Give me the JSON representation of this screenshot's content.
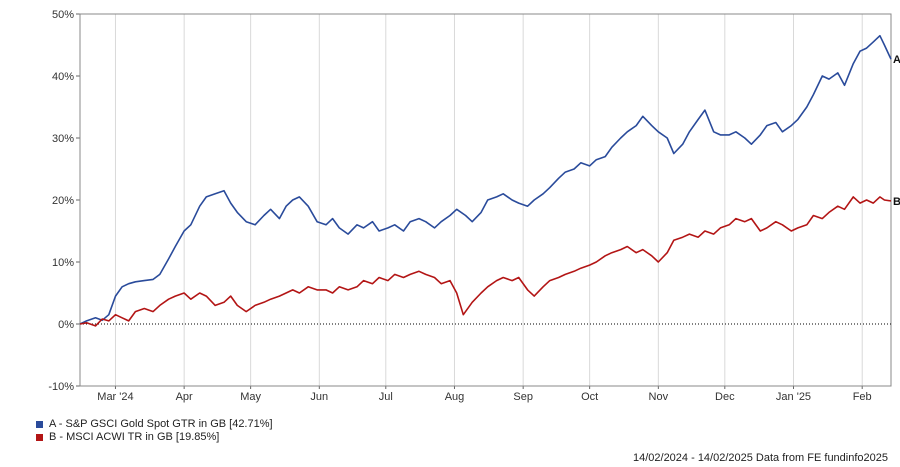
{
  "chart_data": {
    "type": "line",
    "title": "",
    "xlabel": "",
    "ylabel": "",
    "ylim": [
      -10,
      50
    ],
    "y_ticks": [
      50,
      40,
      30,
      20,
      10,
      0,
      -10
    ],
    "y_tick_labels": [
      "50%",
      "40%",
      "30%",
      "20%",
      "10%",
      "0%",
      "-10%"
    ],
    "x_tick_labels": [
      "Mar '24",
      "Apr",
      "May",
      "Jun",
      "Jul",
      "Aug",
      "Sep",
      "Oct",
      "Nov",
      "Dec",
      "Jan '25",
      "Feb"
    ],
    "x_tick_dates": [
      "2024-03-01",
      "2024-04-01",
      "2024-05-01",
      "2024-06-01",
      "2024-07-01",
      "2024-08-01",
      "2024-09-01",
      "2024-10-01",
      "2024-11-01",
      "2024-12-01",
      "2025-01-01",
      "2025-02-01"
    ],
    "xlim": [
      "2024-02-14",
      "2025-02-14"
    ],
    "grid": "vertical gridlines at month ticks; dotted zero line",
    "series": [
      {
        "name": "A - S&P GSCI Gold Spot GTR in GB [42.71%]",
        "end_label": "A",
        "color": "#2a4b9b",
        "x": [
          "2024-02-14",
          "2024-02-17",
          "2024-02-21",
          "2024-02-24",
          "2024-02-27",
          "2024-03-01",
          "2024-03-04",
          "2024-03-07",
          "2024-03-10",
          "2024-03-14",
          "2024-03-18",
          "2024-03-21",
          "2024-03-25",
          "2024-03-28",
          "2024-04-01",
          "2024-04-04",
          "2024-04-08",
          "2024-04-11",
          "2024-04-15",
          "2024-04-19",
          "2024-04-22",
          "2024-04-25",
          "2024-04-29",
          "2024-05-03",
          "2024-05-07",
          "2024-05-10",
          "2024-05-14",
          "2024-05-17",
          "2024-05-20",
          "2024-05-23",
          "2024-05-27",
          "2024-05-31",
          "2024-06-04",
          "2024-06-07",
          "2024-06-10",
          "2024-06-14",
          "2024-06-18",
          "2024-06-21",
          "2024-06-25",
          "2024-06-28",
          "2024-07-02",
          "2024-07-05",
          "2024-07-09",
          "2024-07-12",
          "2024-07-16",
          "2024-07-19",
          "2024-07-23",
          "2024-07-26",
          "2024-07-30",
          "2024-08-02",
          "2024-08-06",
          "2024-08-09",
          "2024-08-13",
          "2024-08-16",
          "2024-08-20",
          "2024-08-23",
          "2024-08-27",
          "2024-08-30",
          "2024-09-03",
          "2024-09-06",
          "2024-09-10",
          "2024-09-13",
          "2024-09-17",
          "2024-09-20",
          "2024-09-24",
          "2024-09-27",
          "2024-10-01",
          "2024-10-04",
          "2024-10-08",
          "2024-10-11",
          "2024-10-15",
          "2024-10-18",
          "2024-10-22",
          "2024-10-25",
          "2024-10-29",
          "2024-11-01",
          "2024-11-05",
          "2024-11-08",
          "2024-11-12",
          "2024-11-15",
          "2024-11-19",
          "2024-11-22",
          "2024-11-26",
          "2024-11-29",
          "2024-12-03",
          "2024-12-06",
          "2024-12-10",
          "2024-12-13",
          "2024-12-17",
          "2024-12-20",
          "2024-12-24",
          "2024-12-27",
          "2024-12-31",
          "2025-01-03",
          "2025-01-07",
          "2025-01-10",
          "2025-01-14",
          "2025-01-17",
          "2025-01-21",
          "2025-01-24",
          "2025-01-28",
          "2025-01-31",
          "2025-02-03",
          "2025-02-06",
          "2025-02-09",
          "2025-02-11",
          "2025-02-14"
        ],
        "values": [
          0.0,
          0.5,
          1.0,
          0.6,
          1.5,
          4.5,
          6.0,
          6.5,
          6.8,
          7.0,
          7.2,
          8.0,
          10.5,
          12.5,
          15.0,
          16.0,
          19.0,
          20.5,
          21.0,
          21.5,
          19.5,
          18.0,
          16.5,
          16.0,
          17.5,
          18.5,
          17.0,
          19.0,
          20.0,
          20.5,
          19.0,
          16.5,
          16.0,
          17.0,
          15.5,
          14.5,
          16.0,
          15.5,
          16.5,
          15.0,
          15.5,
          16.0,
          15.0,
          16.5,
          17.0,
          16.5,
          15.5,
          16.5,
          17.5,
          18.5,
          17.5,
          16.5,
          18.0,
          20.0,
          20.5,
          21.0,
          20.0,
          19.5,
          19.0,
          20.0,
          21.0,
          22.0,
          23.5,
          24.5,
          25.0,
          26.0,
          25.5,
          26.5,
          27.0,
          28.5,
          30.0,
          31.0,
          32.0,
          33.5,
          32.0,
          31.0,
          30.0,
          27.5,
          29.0,
          31.0,
          33.0,
          34.5,
          31.0,
          30.5,
          30.5,
          31.0,
          30.0,
          29.0,
          30.5,
          32.0,
          32.5,
          31.0,
          32.0,
          33.0,
          35.0,
          37.0,
          40.0,
          39.5,
          40.5,
          38.5,
          42.0,
          44.0,
          44.5,
          45.5,
          46.5,
          45.0,
          42.71
        ]
      },
      {
        "name": "B - MSCI ACWI TR in GB [19.85%]",
        "end_label": "B",
        "color": "#b31515",
        "x": [
          "2024-02-14",
          "2024-02-17",
          "2024-02-21",
          "2024-02-24",
          "2024-02-27",
          "2024-03-01",
          "2024-03-04",
          "2024-03-07",
          "2024-03-10",
          "2024-03-14",
          "2024-03-18",
          "2024-03-21",
          "2024-03-25",
          "2024-03-28",
          "2024-04-01",
          "2024-04-04",
          "2024-04-08",
          "2024-04-11",
          "2024-04-15",
          "2024-04-19",
          "2024-04-22",
          "2024-04-25",
          "2024-04-29",
          "2024-05-03",
          "2024-05-07",
          "2024-05-10",
          "2024-05-14",
          "2024-05-17",
          "2024-05-20",
          "2024-05-23",
          "2024-05-27",
          "2024-05-31",
          "2024-06-04",
          "2024-06-07",
          "2024-06-10",
          "2024-06-14",
          "2024-06-18",
          "2024-06-21",
          "2024-06-25",
          "2024-06-28",
          "2024-07-02",
          "2024-07-05",
          "2024-07-09",
          "2024-07-12",
          "2024-07-16",
          "2024-07-19",
          "2024-07-23",
          "2024-07-26",
          "2024-07-30",
          "2024-08-02",
          "2024-08-05",
          "2024-08-09",
          "2024-08-13",
          "2024-08-16",
          "2024-08-20",
          "2024-08-23",
          "2024-08-27",
          "2024-08-30",
          "2024-09-03",
          "2024-09-06",
          "2024-09-10",
          "2024-09-13",
          "2024-09-17",
          "2024-09-20",
          "2024-09-24",
          "2024-09-27",
          "2024-10-01",
          "2024-10-04",
          "2024-10-08",
          "2024-10-11",
          "2024-10-15",
          "2024-10-18",
          "2024-10-22",
          "2024-10-25",
          "2024-10-29",
          "2024-11-01",
          "2024-11-05",
          "2024-11-08",
          "2024-11-12",
          "2024-11-15",
          "2024-11-19",
          "2024-11-22",
          "2024-11-26",
          "2024-11-29",
          "2024-12-03",
          "2024-12-06",
          "2024-12-10",
          "2024-12-13",
          "2024-12-17",
          "2024-12-20",
          "2024-12-24",
          "2024-12-27",
          "2024-12-31",
          "2025-01-03",
          "2025-01-07",
          "2025-01-10",
          "2025-01-14",
          "2025-01-17",
          "2025-01-21",
          "2025-01-24",
          "2025-01-28",
          "2025-01-31",
          "2025-02-03",
          "2025-02-06",
          "2025-02-09",
          "2025-02-11",
          "2025-02-14"
        ],
        "values": [
          0.0,
          0.2,
          -0.3,
          0.8,
          0.5,
          1.5,
          1.0,
          0.5,
          2.0,
          2.5,
          2.0,
          3.0,
          4.0,
          4.5,
          5.0,
          4.0,
          5.0,
          4.5,
          3.0,
          3.5,
          4.5,
          3.0,
          2.0,
          3.0,
          3.5,
          4.0,
          4.5,
          5.0,
          5.5,
          5.0,
          6.0,
          5.5,
          5.5,
          5.0,
          6.0,
          5.5,
          6.0,
          7.0,
          6.5,
          7.5,
          7.0,
          8.0,
          7.5,
          8.0,
          8.5,
          8.0,
          7.5,
          6.5,
          7.0,
          5.0,
          1.5,
          3.5,
          5.0,
          6.0,
          7.0,
          7.5,
          7.0,
          7.5,
          5.5,
          4.5,
          6.0,
          7.0,
          7.5,
          8.0,
          8.5,
          9.0,
          9.5,
          10.0,
          11.0,
          11.5,
          12.0,
          12.5,
          11.5,
          12.0,
          11.0,
          10.0,
          11.5,
          13.5,
          14.0,
          14.5,
          14.0,
          15.0,
          14.5,
          15.5,
          16.0,
          17.0,
          16.5,
          17.0,
          15.0,
          15.5,
          16.5,
          16.0,
          15.0,
          15.5,
          16.0,
          17.5,
          17.0,
          18.0,
          19.0,
          18.5,
          20.5,
          19.5,
          20.0,
          19.5,
          20.5,
          20.0,
          19.85
        ]
      }
    ],
    "legend": "bottom-left"
  },
  "legend": {
    "a_label": "A - S&P GSCI Gold Spot GTR in GB [42.71%]",
    "b_label": "B - MSCI ACWI TR in GB [19.85%]"
  },
  "footer": {
    "text": "14/02/2024 - 14/02/2025 Data from FE fundinfo2025"
  }
}
